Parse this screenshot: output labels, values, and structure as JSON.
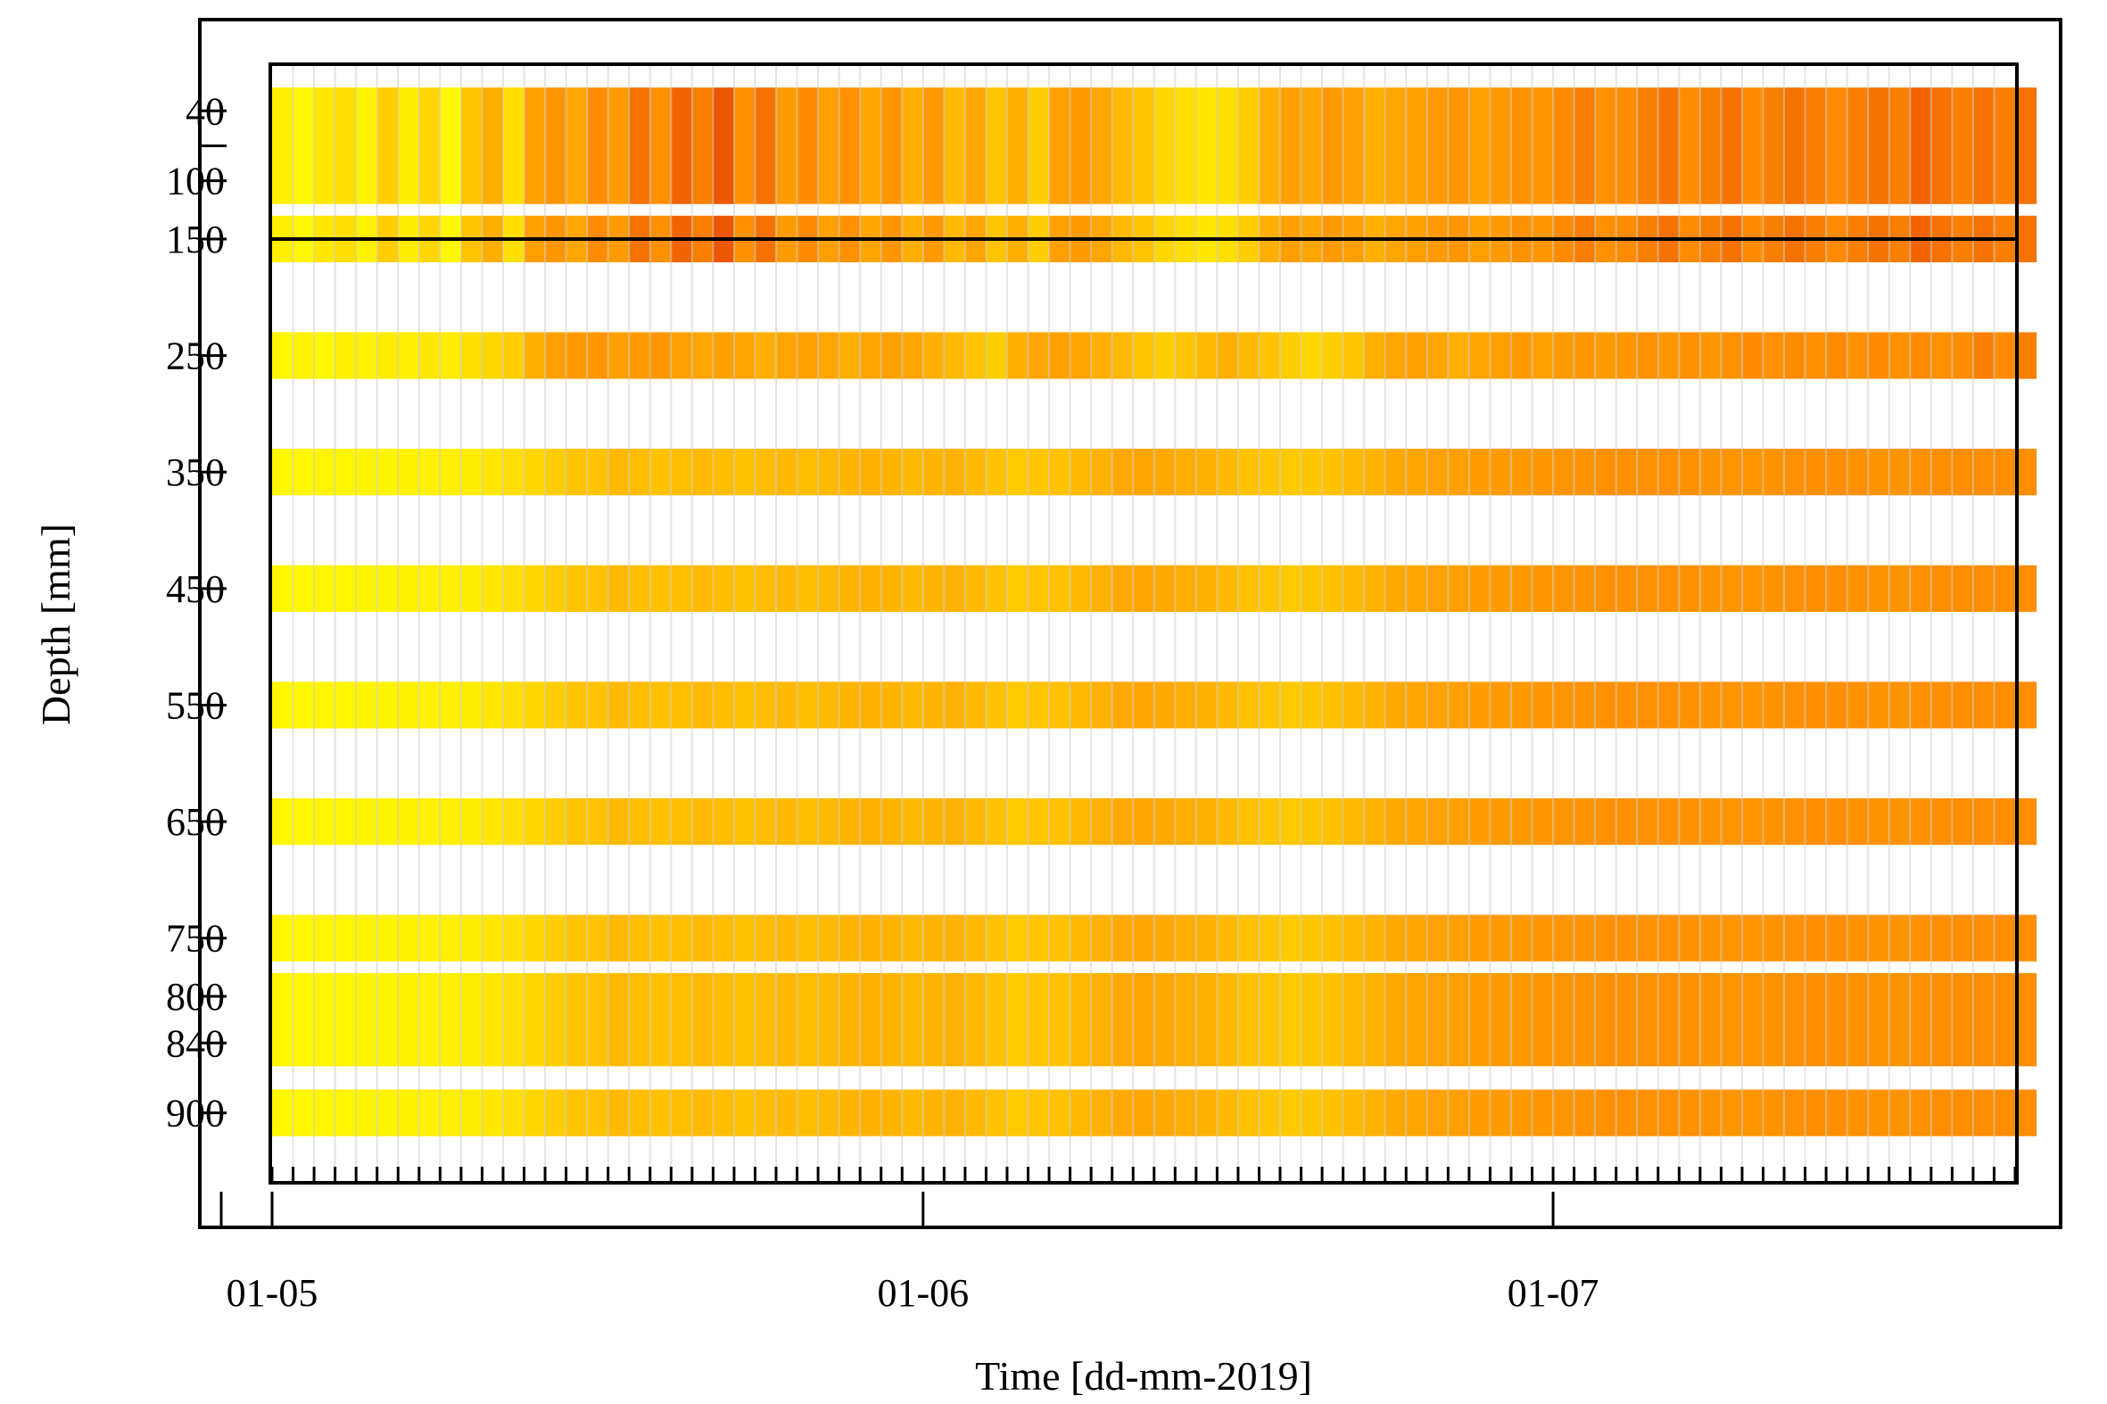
{
  "chart_data": {
    "type": "heatmap",
    "xlabel": "Time [dd-mm-2019]",
    "ylabel": "Depth [mm]",
    "x_range": [
      "01-05",
      "23-07"
    ],
    "x_tick_labels": [
      "01-05",
      "01-06",
      "01-07"
    ],
    "x_tick_dates": [
      0,
      31,
      61
    ],
    "x_minor_tick_step_days": 1,
    "y_range": [
      0,
      960
    ],
    "y_inverted": true,
    "y_tick_labels": [
      "40",
      "100",
      "150",
      "250",
      "350",
      "450",
      "550",
      "650",
      "750",
      "800",
      "840",
      "900"
    ],
    "y_tick_values": [
      40,
      100,
      150,
      250,
      350,
      450,
      550,
      650,
      750,
      800,
      840,
      900
    ],
    "reference_line_depth": 150,
    "daily_gap_lines": true,
    "colormap": [
      "#ffff00",
      "#ffd700",
      "#ffa500",
      "#ff8c00",
      "#e64a00"
    ],
    "layers": [
      {
        "depth_top": 20,
        "depth_bottom": 120,
        "profile": "surface"
      },
      {
        "depth_top": 130,
        "depth_bottom": 170,
        "profile": "surface"
      },
      {
        "depth_top": 230,
        "depth_bottom": 270,
        "profile": "shallow"
      },
      {
        "depth_top": 330,
        "depth_bottom": 370,
        "profile": "deep"
      },
      {
        "depth_top": 430,
        "depth_bottom": 470,
        "profile": "deep"
      },
      {
        "depth_top": 530,
        "depth_bottom": 570,
        "profile": "deep"
      },
      {
        "depth_top": 630,
        "depth_bottom": 670,
        "profile": "deep"
      },
      {
        "depth_top": 730,
        "depth_bottom": 770,
        "profile": "deep"
      },
      {
        "depth_top": 780,
        "depth_bottom": 860,
        "profile": "deep"
      },
      {
        "depth_top": 880,
        "depth_bottom": 920,
        "profile": "deep"
      }
    ],
    "profiles": {
      "surface": [
        0.1,
        0.05,
        0.15,
        0.2,
        0.08,
        0.3,
        0.12,
        0.25,
        0.05,
        0.35,
        0.45,
        0.2,
        0.55,
        0.65,
        0.5,
        0.75,
        0.6,
        0.85,
        0.7,
        0.9,
        0.8,
        0.95,
        0.7,
        0.85,
        0.6,
        0.75,
        0.55,
        0.7,
        0.5,
        0.65,
        0.45,
        0.6,
        0.4,
        0.5,
        0.35,
        0.45,
        0.3,
        0.55,
        0.6,
        0.5,
        0.4,
        0.35,
        0.25,
        0.2,
        0.15,
        0.2,
        0.3,
        0.45,
        0.55,
        0.5,
        0.6,
        0.55,
        0.45,
        0.5,
        0.55,
        0.6,
        0.65,
        0.55,
        0.6,
        0.7,
        0.65,
        0.75,
        0.8,
        0.7,
        0.75,
        0.8,
        0.85,
        0.75,
        0.8,
        0.85,
        0.75,
        0.8,
        0.85,
        0.8,
        0.75,
        0.8,
        0.85,
        0.8,
        0.9,
        0.85,
        0.8,
        0.85,
        0.8,
        0.85
      ],
      "shallow": [
        0.05,
        0.08,
        0.05,
        0.1,
        0.08,
        0.12,
        0.1,
        0.15,
        0.12,
        0.2,
        0.25,
        0.3,
        0.45,
        0.55,
        0.6,
        0.65,
        0.55,
        0.6,
        0.65,
        0.55,
        0.5,
        0.55,
        0.5,
        0.45,
        0.5,
        0.55,
        0.5,
        0.45,
        0.5,
        0.55,
        0.5,
        0.45,
        0.4,
        0.35,
        0.3,
        0.45,
        0.5,
        0.55,
        0.5,
        0.45,
        0.4,
        0.35,
        0.3,
        0.35,
        0.4,
        0.45,
        0.4,
        0.35,
        0.3,
        0.25,
        0.3,
        0.35,
        0.45,
        0.5,
        0.55,
        0.5,
        0.45,
        0.5,
        0.55,
        0.6,
        0.55,
        0.6,
        0.65,
        0.6,
        0.65,
        0.7,
        0.65,
        0.7,
        0.65,
        0.7,
        0.75,
        0.7,
        0.75,
        0.7,
        0.75,
        0.7,
        0.75,
        0.7,
        0.75,
        0.7,
        0.75,
        0.8,
        0.75,
        0.8
      ],
      "deep": [
        0.05,
        0.05,
        0.06,
        0.06,
        0.07,
        0.07,
        0.08,
        0.09,
        0.1,
        0.12,
        0.15,
        0.2,
        0.25,
        0.3,
        0.35,
        0.35,
        0.4,
        0.38,
        0.36,
        0.38,
        0.4,
        0.38,
        0.36,
        0.38,
        0.4,
        0.38,
        0.4,
        0.42,
        0.44,
        0.42,
        0.4,
        0.42,
        0.44,
        0.4,
        0.36,
        0.32,
        0.34,
        0.36,
        0.4,
        0.44,
        0.48,
        0.5,
        0.48,
        0.46,
        0.44,
        0.4,
        0.36,
        0.34,
        0.32,
        0.34,
        0.36,
        0.4,
        0.44,
        0.48,
        0.5,
        0.54,
        0.56,
        0.58,
        0.6,
        0.62,
        0.64,
        0.66,
        0.68,
        0.7,
        0.7,
        0.7,
        0.7,
        0.7,
        0.68,
        0.66,
        0.66,
        0.68,
        0.7,
        0.72,
        0.72,
        0.7,
        0.68,
        0.68,
        0.7,
        0.72,
        0.74,
        0.74,
        0.74,
        0.74
      ]
    }
  }
}
